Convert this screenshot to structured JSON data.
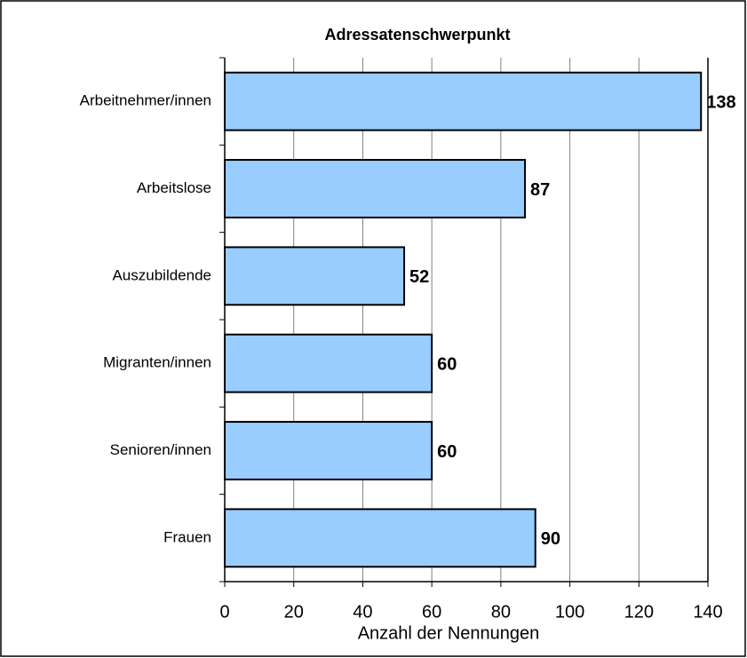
{
  "chart_data": {
    "type": "bar",
    "orientation": "horizontal",
    "title": "Adressatenschwerpunkt",
    "x_label": "Anzahl der Nennungen",
    "categories": [
      "Arbeitnehmer/innen",
      "Arbeitslose",
      "Auszubildende",
      "Migranten/innen",
      "Senioren/innen",
      "Frauen"
    ],
    "values": [
      138,
      87,
      52,
      60,
      60,
      90
    ],
    "color": "#99ccff",
    "xlim": [
      0,
      140
    ],
    "xticks": [
      0,
      20,
      40,
      60,
      80,
      100,
      120,
      140
    ],
    "grid": true
  }
}
